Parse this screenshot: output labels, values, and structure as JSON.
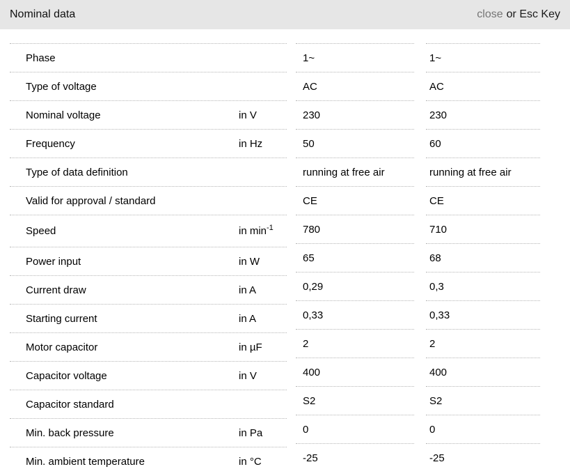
{
  "header": {
    "title": "Nominal data",
    "close_label": "close",
    "esc_hint": "or Esc Key"
  },
  "colors": {
    "header_bg": "#e6e6e6",
    "close_text": "#757575",
    "body_text": "#000000",
    "divider": "#b5b5b5"
  },
  "table": {
    "rows": [
      {
        "label": "Phase",
        "unit": "",
        "values": [
          "1~",
          "1~"
        ]
      },
      {
        "label": "Type of voltage",
        "unit": "",
        "values": [
          "AC",
          "AC"
        ]
      },
      {
        "label": "Nominal voltage",
        "unit": "in V",
        "values": [
          "230",
          "230"
        ]
      },
      {
        "label": "Frequency",
        "unit": "in Hz",
        "values": [
          "50",
          "60"
        ]
      },
      {
        "label": "Type of data definition",
        "unit": "",
        "values": [
          "running at free air",
          "running at free air"
        ]
      },
      {
        "label": "Valid for approval / standard",
        "unit": "",
        "values": [
          "CE",
          "CE"
        ]
      },
      {
        "label": "Speed",
        "unit": "in min",
        "unit_sup": "-1",
        "values": [
          "780",
          "710"
        ]
      },
      {
        "label": "Power input",
        "unit": "in W",
        "values": [
          "65",
          "68"
        ]
      },
      {
        "label": "Current draw",
        "unit": "in A",
        "values": [
          "0,29",
          "0,3"
        ]
      },
      {
        "label": "Starting current",
        "unit": "in A",
        "values": [
          "0,33",
          "0,33"
        ]
      },
      {
        "label": "Motor capacitor",
        "unit": "in µF",
        "values": [
          "2",
          "2"
        ]
      },
      {
        "label": "Capacitor voltage",
        "unit": "in V",
        "values": [
          "400",
          "400"
        ]
      },
      {
        "label": "Capacitor standard",
        "unit": "",
        "values": [
          "S2",
          "S2"
        ]
      },
      {
        "label": "Min. back pressure",
        "unit": "in Pa",
        "values": [
          "0",
          "0"
        ]
      },
      {
        "label": "Min. ambient temperature",
        "unit": "in °C",
        "values": [
          "-25",
          "-25"
        ]
      }
    ]
  }
}
